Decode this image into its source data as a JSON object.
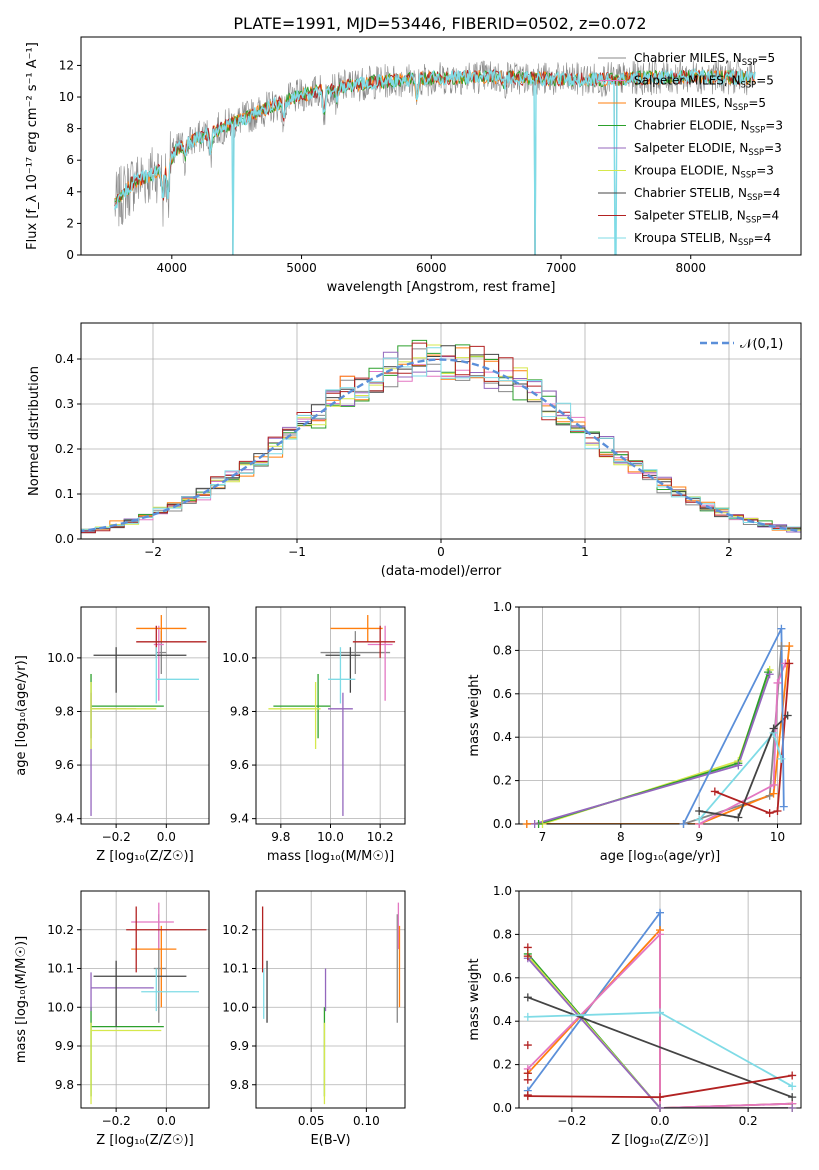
{
  "colors": {
    "Chabrier MILES": "#888888",
    "Salpeter MILES": "#e377c2",
    "Kroupa MILES": "#ff7f0e",
    "Chabrier ELODIE": "#2ca02c",
    "Salpeter ELODIE": "#9467bd",
    "Kroupa ELODIE": "#d6e84c",
    "Chabrier STELIB": "#444444",
    "Salpeter STELIB": "#b22222",
    "Kroupa STELIB": "#7fdbe6",
    "grid": "#b0b0b0",
    "gauss": "#5b8fd9",
    "mw_blue": "#5b8fd9"
  },
  "chart_data": [
    {
      "id": "spectrum",
      "type": "line",
      "title": "PLATE=1991, MJD=53446, FIBERID=0502, z=0.072",
      "xlabel": "wavelength [Angstrom, rest frame]",
      "ylabel": "Flux [f_λ 10⁻¹⁷ erg cm⁻² s⁻¹ A⁻¹]",
      "xlim": [
        3300,
        8850
      ],
      "ylim": [
        0,
        13.8
      ],
      "xticks": [
        4000,
        5000,
        6000,
        7000,
        8000
      ],
      "yticks": [
        0,
        2,
        4,
        6,
        8,
        10,
        12
      ],
      "grid": false,
      "legend_position": "top-right",
      "legend": [
        {
          "model": "Chabrier MILES",
          "nssp": "5"
        },
        {
          "model": "Salpeter MILES",
          "nssp": "5"
        },
        {
          "model": "Kroupa MILES",
          "nssp": "5"
        },
        {
          "model": "Chabrier ELODIE",
          "nssp": "3"
        },
        {
          "model": "Salpeter ELODIE",
          "nssp": "3"
        },
        {
          "model": "Kroupa ELODIE",
          "nssp": "3"
        },
        {
          "model": "Chabrier STELIB",
          "nssp": "4"
        },
        {
          "model": "Salpeter STELIB",
          "nssp": "4"
        },
        {
          "model": "Kroupa STELIB",
          "nssp": "4"
        }
      ],
      "continuum": [
        [
          3560,
          3.2
        ],
        [
          3700,
          4.6
        ],
        [
          3850,
          5.1
        ],
        [
          3950,
          5.6
        ],
        [
          4050,
          6.8
        ],
        [
          4200,
          7.4
        ],
        [
          4400,
          8.1
        ],
        [
          4600,
          8.8
        ],
        [
          4800,
          9.5
        ],
        [
          5000,
          10.1
        ],
        [
          5200,
          10.5
        ],
        [
          5500,
          10.9
        ],
        [
          5800,
          11.1
        ],
        [
          6100,
          11.2
        ],
        [
          6400,
          11.3
        ],
        [
          6700,
          11.2
        ],
        [
          7000,
          11.1
        ],
        [
          7300,
          11.1
        ],
        [
          7600,
          11.2
        ],
        [
          8000,
          11.3
        ],
        [
          8300,
          11.25
        ],
        [
          8500,
          11.2
        ]
      ],
      "absorption_features": [
        [
          3934,
          2.0
        ],
        [
          3969,
          2.2
        ],
        [
          4101,
          1.0
        ],
        [
          4300,
          1.3
        ],
        [
          4861,
          1.2
        ],
        [
          5175,
          1.5
        ],
        [
          5270,
          0.8
        ],
        [
          5890,
          1.3
        ],
        [
          6563,
          0.6
        ]
      ],
      "gaps": [
        [
          4470,
          0,
          1.6
        ],
        [
          6800,
          0,
          3.5
        ],
        [
          7420,
          0,
          10.5
        ]
      ]
    },
    {
      "id": "residuals",
      "type": "bar",
      "xlabel": "(data-model)/error",
      "ylabel": "Normed distribution",
      "xlim": [
        -2.5,
        2.5
      ],
      "ylim": [
        0,
        0.48
      ],
      "xticks": [
        -2,
        -1,
        0,
        1,
        2
      ],
      "yticks": [
        0.0,
        0.1,
        0.2,
        0.3,
        0.4
      ],
      "grid": true,
      "legend_position": "top-right",
      "legend_label": "𝒩(0,1)",
      "bin_width": 0.1
    },
    {
      "id": "age_vs_z",
      "type": "scatter",
      "xlabel": "Z [log₁₀(Z/Z☉)]",
      "ylabel": "age  [log₁₀(age/yr)]",
      "xlim": [
        -0.34,
        0.17
      ],
      "ylim": [
        9.38,
        10.19
      ],
      "xticks": [
        -0.2,
        0.0
      ],
      "xticklabels": [
        "−0.2",
        "0.0"
      ],
      "yticks": [
        9.4,
        9.6,
        9.8,
        10.0
      ],
      "grid": true,
      "points": [
        {
          "model": "Chabrier MILES",
          "x": -0.02,
          "y": 10.02,
          "xl": -0.04,
          "xh": 0.0,
          "yl": 9.94,
          "yh": 10.1
        },
        {
          "model": "Salpeter MILES",
          "x": -0.03,
          "y": 10.05,
          "xl": -0.05,
          "xh": -0.01,
          "yl": 9.84,
          "yh": 10.12
        },
        {
          "model": "Kroupa MILES",
          "x": -0.02,
          "y": 10.11,
          "xl": -0.12,
          "xh": 0.08,
          "yl": 10.06,
          "yh": 10.16
        },
        {
          "model": "Chabrier ELODIE",
          "x": -0.3,
          "y": 9.82,
          "xl": -0.3,
          "xh": -0.01,
          "yl": 9.7,
          "yh": 9.94
        },
        {
          "model": "Salpeter ELODIE",
          "x": -0.3,
          "y": 9.81,
          "xl": -0.3,
          "xh": -0.12,
          "yl": 9.41,
          "yh": 9.87
        },
        {
          "model": "Kroupa ELODIE",
          "x": -0.3,
          "y": 9.81,
          "xl": -0.3,
          "xh": -0.04,
          "yl": 9.66,
          "yh": 9.91
        },
        {
          "model": "Chabrier STELIB",
          "x": -0.2,
          "y": 10.01,
          "xl": -0.29,
          "xh": 0.08,
          "yl": 9.87,
          "yh": 10.04
        },
        {
          "model": "Salpeter STELIB",
          "x": -0.04,
          "y": 10.06,
          "xl": -0.12,
          "xh": 0.16,
          "yl": 10.0,
          "yh": 10.12
        },
        {
          "model": "Kroupa STELIB",
          "x": -0.04,
          "y": 9.92,
          "xl": -0.04,
          "xh": 0.13,
          "yl": 9.83,
          "yh": 10.04
        }
      ]
    },
    {
      "id": "age_vs_mass",
      "type": "scatter",
      "xlabel": "mass [log₁₀(M/M☉)]",
      "ylabel": "",
      "xlim": [
        9.7,
        10.3
      ],
      "ylim": [
        9.38,
        10.19
      ],
      "xticks": [
        9.8,
        10.0,
        10.2
      ],
      "xticklabels": [
        "9.8",
        "10.0",
        "10.2"
      ],
      "yticks": [
        9.4,
        9.6,
        9.8,
        10.0
      ],
      "grid": true,
      "points": [
        {
          "model": "Chabrier MILES",
          "x": 10.1,
          "y": 10.02,
          "xl": 9.96,
          "xh": 10.24,
          "yl": 9.94,
          "yh": 10.1
        },
        {
          "model": "Salpeter MILES",
          "x": 10.22,
          "y": 10.05,
          "xl": 10.15,
          "xh": 10.25,
          "yl": 9.84,
          "yh": 10.12
        },
        {
          "model": "Kroupa MILES",
          "x": 10.15,
          "y": 10.11,
          "xl": 10.0,
          "xh": 10.21,
          "yl": 10.06,
          "yh": 10.16
        },
        {
          "model": "Chabrier ELODIE",
          "x": 9.95,
          "y": 9.82,
          "xl": 9.77,
          "xh": 10.0,
          "yl": 9.7,
          "yh": 9.94
        },
        {
          "model": "Salpeter ELODIE",
          "x": 10.05,
          "y": 9.81,
          "xl": 9.99,
          "xh": 10.09,
          "yl": 9.41,
          "yh": 9.87
        },
        {
          "model": "Kroupa ELODIE",
          "x": 9.94,
          "y": 9.81,
          "xl": 9.75,
          "xh": 9.96,
          "yl": 9.66,
          "yh": 9.91
        },
        {
          "model": "Chabrier STELIB",
          "x": 10.08,
          "y": 10.01,
          "xl": 9.98,
          "xh": 10.12,
          "yl": 9.87,
          "yh": 10.04
        },
        {
          "model": "Salpeter STELIB",
          "x": 10.2,
          "y": 10.06,
          "xl": 10.09,
          "xh": 10.26,
          "yl": 10.0,
          "yh": 10.12
        },
        {
          "model": "Kroupa STELIB",
          "x": 10.04,
          "y": 9.92,
          "xl": 9.99,
          "xh": 10.1,
          "yl": 9.83,
          "yh": 10.04
        }
      ]
    },
    {
      "id": "mass_weight_vs_age",
      "type": "line",
      "xlabel": "age  [log₁₀(age/yr)]",
      "ylabel": "mass weight",
      "xlim": [
        6.7,
        10.3
      ],
      "ylim": [
        0,
        1.0
      ],
      "xticks": [
        7,
        8,
        9,
        10
      ],
      "yticks": [
        0.0,
        0.2,
        0.4,
        0.6,
        0.8,
        1.0
      ],
      "grid": true,
      "series": [
        {
          "model": "Kroupa ELODIE",
          "x": [
            7.0,
            9.5,
            9.9
          ],
          "y": [
            0.0,
            0.29,
            0.71
          ]
        },
        {
          "model": "Chabrier ELODIE",
          "x": [
            6.95,
            9.5,
            9.88
          ],
          "y": [
            0.0,
            0.28,
            0.7
          ]
        },
        {
          "model": "Salpeter ELODIE",
          "x": [
            6.9,
            9.5,
            9.9
          ],
          "y": [
            0.0,
            0.27,
            0.69
          ]
        },
        {
          "model": "Chabrier MILES",
          "x": [
            6.8,
            8.8,
            9.9,
            10.05
          ],
          "y": [
            0.0,
            0.0,
            0.13,
            0.82
          ]
        },
        {
          "model": "Kroupa MILES",
          "x": [
            6.8,
            9.0,
            9.95,
            10.15
          ],
          "y": [
            0.0,
            0.0,
            0.14,
            0.82
          ]
        },
        {
          "model": "Salpeter MILES",
          "x": [
            9.0,
            9.95,
            10.0,
            10.1
          ],
          "y": [
            0.0,
            0.18,
            0.65,
            0.74
          ]
        },
        {
          "model": "Kroupa STELIB",
          "x": [
            9.0,
            9.95,
            10.05
          ],
          "y": [
            0.02,
            0.42,
            0.3
          ]
        },
        {
          "model": "Chabrier STELIB",
          "x": [
            9.0,
            9.5,
            9.95,
            10.13
          ],
          "y": [
            0.06,
            0.03,
            0.44,
            0.5
          ]
        },
        {
          "model": "Salpeter STELIB",
          "x": [
            9.2,
            9.9,
            10.0,
            10.15
          ],
          "y": [
            0.15,
            0.05,
            0.06,
            0.74
          ]
        },
        {
          "model": "mw_blue",
          "x": [
            8.8,
            10.05,
            10.08
          ],
          "y": [
            0.0,
            0.9,
            0.08
          ]
        }
      ]
    },
    {
      "id": "mass_vs_z",
      "type": "scatter",
      "xlabel": "Z [log₁₀(Z/Z☉)]",
      "ylabel": "mass [log₁₀(M/M☉)]",
      "xlim": [
        -0.34,
        0.17
      ],
      "ylim": [
        9.74,
        10.3
      ],
      "xticks": [
        -0.2,
        0.0
      ],
      "xticklabels": [
        "−0.2",
        "0.0"
      ],
      "yticks": [
        9.8,
        9.9,
        10.0,
        10.1,
        10.2
      ],
      "grid": true,
      "points": [
        {
          "model": "Chabrier MILES",
          "x": -0.03,
          "y": 10.1,
          "xl": -0.05,
          "xh": 0.0,
          "yl": 9.96,
          "yh": 10.24
        },
        {
          "model": "Salpeter MILES",
          "x": -0.03,
          "y": 10.22,
          "xl": -0.14,
          "xh": 0.03,
          "yl": 10.15,
          "yh": 10.27
        },
        {
          "model": "Kroupa MILES",
          "x": -0.02,
          "y": 10.15,
          "xl": -0.14,
          "xh": 0.04,
          "yl": 10.0,
          "yh": 10.21
        },
        {
          "model": "Chabrier ELODIE",
          "x": -0.3,
          "y": 9.95,
          "xl": -0.3,
          "xh": -0.01,
          "yl": 9.77,
          "yh": 10.0
        },
        {
          "model": "Salpeter ELODIE",
          "x": -0.3,
          "y": 10.05,
          "xl": -0.3,
          "xh": -0.05,
          "yl": 9.99,
          "yh": 10.09
        },
        {
          "model": "Kroupa ELODIE",
          "x": -0.3,
          "y": 9.94,
          "xl": -0.3,
          "xh": -0.02,
          "yl": 9.75,
          "yh": 9.96
        },
        {
          "model": "Chabrier STELIB",
          "x": -0.2,
          "y": 10.08,
          "xl": -0.29,
          "xh": 0.08,
          "yl": 9.95,
          "yh": 10.12
        },
        {
          "model": "Salpeter STELIB",
          "x": -0.12,
          "y": 10.2,
          "xl": -0.16,
          "xh": 0.16,
          "yl": 10.09,
          "yh": 10.26
        },
        {
          "model": "Kroupa STELIB",
          "x": -0.04,
          "y": 10.04,
          "xl": -0.1,
          "xh": 0.13,
          "yl": 9.99,
          "yh": 10.1
        }
      ]
    },
    {
      "id": "mass_vs_ebv",
      "type": "scatter",
      "xlabel": "E(B-V)",
      "ylabel": "",
      "xlim": [
        0.0,
        0.135
      ],
      "ylim": [
        9.74,
        10.3
      ],
      "xticks": [
        0.05,
        0.1
      ],
      "xticklabels": [
        "0.05",
        "0.10"
      ],
      "yticks": [
        9.8,
        9.9,
        10.0,
        10.1,
        10.2
      ],
      "grid": true,
      "points": [
        {
          "model": "Chabrier MILES",
          "x": 0.128,
          "y": 10.1,
          "yl": 9.96,
          "yh": 10.24
        },
        {
          "model": "Salpeter MILES",
          "x": 0.129,
          "y": 10.22,
          "yl": 10.15,
          "yh": 10.27
        },
        {
          "model": "Kroupa MILES",
          "x": 0.13,
          "y": 10.12,
          "yl": 10.0,
          "yh": 10.21
        },
        {
          "model": "Chabrier ELODIE",
          "x": 0.062,
          "y": 9.95,
          "yl": 9.77,
          "yh": 10.0
        },
        {
          "model": "Salpeter ELODIE",
          "x": 0.063,
          "y": 10.05,
          "yl": 9.99,
          "yh": 10.1
        },
        {
          "model": "Kroupa ELODIE",
          "x": 0.062,
          "y": 9.9,
          "yl": 9.75,
          "yh": 9.96
        },
        {
          "model": "Chabrier STELIB",
          "x": 0.01,
          "y": 10.06,
          "yl": 9.96,
          "yh": 10.12
        },
        {
          "model": "Salpeter STELIB",
          "x": 0.006,
          "y": 10.2,
          "yl": 10.09,
          "yh": 10.26
        },
        {
          "model": "Kroupa STELIB",
          "x": 0.007,
          "y": 10.03,
          "yl": 9.97,
          "yh": 10.1
        }
      ]
    },
    {
      "id": "mass_weight_vs_z",
      "type": "line",
      "xlabel": "Z [log₁₀(Z/Z☉)]",
      "ylabel": "mass weight",
      "xlim": [
        -0.32,
        0.32
      ],
      "ylim": [
        0,
        1.0
      ],
      "xticks": [
        -0.2,
        0.0,
        0.2
      ],
      "xticklabels": [
        "−0.2",
        "0.0",
        "0.2"
      ],
      "yticks": [
        0.0,
        0.2,
        0.4,
        0.6,
        0.8,
        1.0
      ],
      "grid": true,
      "series": [
        {
          "model": "mw_blue",
          "x": [
            -0.3,
            0.0,
            0.0,
            0.3
          ],
          "y": [
            0.08,
            0.9,
            0.0,
            0.02
          ]
        },
        {
          "model": "Kroupa MILES",
          "x": [
            -0.3,
            0.0,
            0.0,
            0.3
          ],
          "y": [
            0.16,
            0.82,
            0.0,
            0.02
          ]
        },
        {
          "model": "Salpeter MILES",
          "x": [
            -0.3,
            0.0,
            0.0,
            0.3
          ],
          "y": [
            0.18,
            0.8,
            0.0,
            0.02
          ]
        },
        {
          "model": "Chabrier ELODIE",
          "x": [
            -0.3,
            0.0,
            0.0,
            0.3
          ],
          "y": [
            0.71,
            0.0,
            0.0,
            0.0
          ]
        },
        {
          "model": "Kroupa ELODIE",
          "x": [
            -0.3,
            0.0,
            0.0,
            0.3
          ],
          "y": [
            0.7,
            0.0,
            0.0,
            0.0
          ]
        },
        {
          "model": "Salpeter ELODIE",
          "x": [
            -0.3,
            0.0,
            0.0,
            0.3
          ],
          "y": [
            0.69,
            0.0,
            0.0,
            0.0
          ]
        },
        {
          "model": "Chabrier STELIB",
          "x": [
            -0.3,
            0.3
          ],
          "y": [
            0.51,
            0.05
          ]
        },
        {
          "model": "Kroupa STELIB",
          "x": [
            -0.3,
            0.0,
            0.3
          ],
          "y": [
            0.42,
            0.44,
            0.1
          ]
        },
        {
          "model": "Salpeter STELIB",
          "x": [
            -0.3,
            0.0,
            0.3
          ],
          "y": [
            0.055,
            0.05,
            0.15
          ]
        }
      ],
      "extra_markers": {
        "model": "Salpeter STELIB",
        "x": -0.3,
        "y": [
          0.74,
          0.7,
          0.29,
          0.16,
          0.13,
          0.06
        ]
      }
    }
  ]
}
